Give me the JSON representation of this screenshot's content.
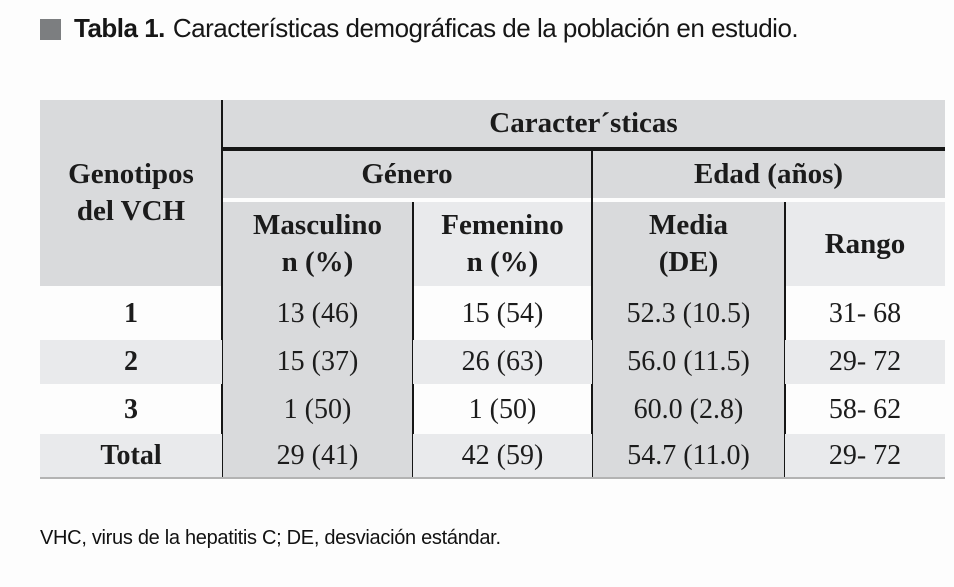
{
  "title": {
    "label": "Tabla 1.",
    "text": "Características demográficas de la población en estudio."
  },
  "table": {
    "top_header": "Caracter´sticas",
    "row_header": {
      "line1": "Genotipos",
      "line2": "del VCH"
    },
    "group_headers": {
      "genero": "Género",
      "edad": "Edad (años)"
    },
    "col_headers": {
      "masculino": {
        "line1": "Masculino",
        "line2": "n (%)"
      },
      "femenino": {
        "line1": "Femenino",
        "line2": "n (%)"
      },
      "media": {
        "line1": "Media",
        "line2": "(DE)"
      },
      "rango": "Rango"
    },
    "rows": [
      {
        "genotype": "1",
        "masculino": "13 (46)",
        "femenino": "15 (54)",
        "media": "52.3 (10.5)",
        "rango": "31- 68"
      },
      {
        "genotype": "2",
        "masculino": "15 (37)",
        "femenino": "26 (63)",
        "media": "56.0 (11.5)",
        "rango": "29- 72"
      },
      {
        "genotype": "3",
        "masculino": "1 (50)",
        "femenino": "1 (50)",
        "media": "60.0 (2.8)",
        "rango": "58- 62"
      },
      {
        "genotype": "Total",
        "masculino": "29 (41)",
        "femenino": "42 (59)",
        "media": "54.7 (11.0)",
        "rango": "29- 72"
      }
    ]
  },
  "footnote": "VHC, virus de la hepatitis C; DE, desviación estándar.",
  "colors": {
    "header_gray": "#d9dadc",
    "band_gray": "#e9eaec",
    "rule_black": "#161616",
    "marker_gray": "#7c7e80"
  }
}
